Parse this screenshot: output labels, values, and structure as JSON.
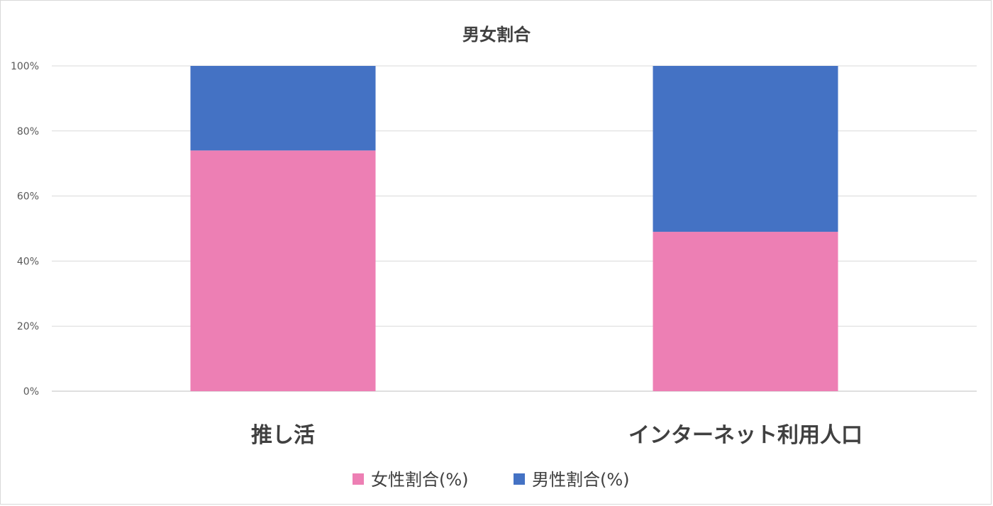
{
  "chart_data": {
    "type": "bar",
    "stacked": true,
    "title": "男女割合",
    "categories": [
      "推し活",
      "インターネット利用人口"
    ],
    "series": [
      {
        "name": "女性割合(%)",
        "values": [
          74,
          49
        ],
        "color": "#ed7fb4"
      },
      {
        "name": "男性割合(%)",
        "values": [
          26,
          51
        ],
        "color": "#4472c4"
      }
    ],
    "y_ticks": [
      "0%",
      "20%",
      "40%",
      "60%",
      "80%",
      "100%"
    ],
    "ylim": [
      0,
      100
    ],
    "grid": true,
    "legend_position": "bottom"
  }
}
